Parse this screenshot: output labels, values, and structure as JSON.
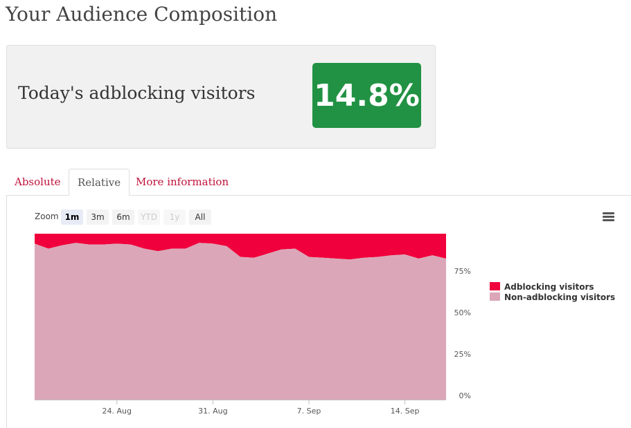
{
  "page": {
    "title": "Your Audience Composition"
  },
  "stat": {
    "label": "Today's adblocking visitors",
    "value": "14.8%",
    "badge_color": "#219243"
  },
  "tabs": [
    {
      "label": "Absolute",
      "active": false
    },
    {
      "label": "Relative",
      "active": true
    },
    {
      "label": "More information",
      "active": false
    }
  ],
  "zoom": {
    "label": "Zoom",
    "buttons": [
      {
        "label": "1m",
        "state": "selected"
      },
      {
        "label": "3m",
        "state": "normal"
      },
      {
        "label": "6m",
        "state": "normal"
      },
      {
        "label": "YTD",
        "state": "disabled"
      },
      {
        "label": "1y",
        "state": "disabled"
      },
      {
        "label": "All",
        "state": "normal"
      }
    ]
  },
  "menu": {
    "icon": "hamburger-menu-icon"
  },
  "chart_data": {
    "type": "area",
    "stacking": "percent",
    "title": "",
    "xlabel": "",
    "ylabel": "",
    "x": [
      "Aug 18",
      "Aug 19",
      "Aug 20",
      "Aug 21",
      "Aug 22",
      "Aug 23",
      "Aug 24",
      "Aug 25",
      "Aug 26",
      "Aug 27",
      "Aug 28",
      "Aug 29",
      "Aug 30",
      "Aug 31",
      "Sep 1",
      "Sep 2",
      "Sep 3",
      "Sep 4",
      "Sep 5",
      "Sep 6",
      "Sep 7",
      "Sep 8",
      "Sep 9",
      "Sep 10",
      "Sep 11",
      "Sep 12",
      "Sep 13",
      "Sep 14",
      "Sep 15",
      "Sep 16",
      "Sep 17"
    ],
    "series": [
      {
        "name": "Adblocking visitors",
        "color": "#f0003c",
        "values": [
          6,
          9,
          7,
          5.5,
          6.5,
          6.5,
          6,
          6.5,
          9,
          10.5,
          9,
          9,
          5.5,
          6,
          7.5,
          14,
          14.5,
          12,
          9.5,
          9,
          14,
          14.5,
          15,
          15.5,
          14.5,
          14,
          13,
          12.5,
          15,
          13,
          15
        ]
      },
      {
        "name": "Non-adblocking visitors",
        "color": "#dba7b8",
        "values": [
          94,
          91,
          93,
          94.5,
          93.5,
          93.5,
          94,
          93.5,
          91,
          89.5,
          91,
          91,
          94.5,
          94,
          92.5,
          86,
          85.5,
          88,
          90.5,
          91,
          86,
          85.5,
          85,
          84.5,
          85.5,
          86,
          87,
          87.5,
          85,
          87,
          85
        ]
      }
    ],
    "x_ticks": [
      "24. Aug",
      "31. Aug",
      "7. Sep",
      "14. Sep"
    ],
    "y_ticks": [
      "0%",
      "25%",
      "50%",
      "75%"
    ],
    "ylim": [
      0,
      100
    ],
    "y_axis_side": "right",
    "legend_position": "right",
    "grid": false
  }
}
